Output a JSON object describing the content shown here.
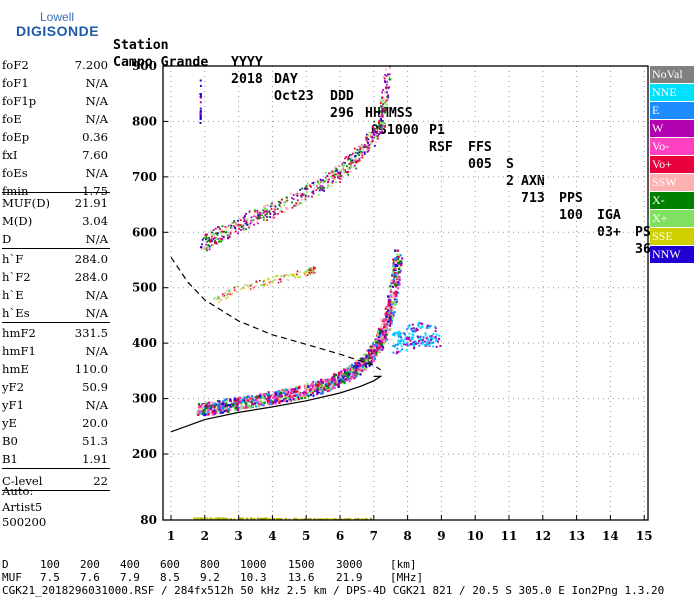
{
  "logo": {
    "top": "Lowell",
    "brand": "DIGISONDE"
  },
  "header": {
    "labels": [
      "Station",
      "YYYY",
      "DAY",
      "DDD",
      "HHMMSS",
      "P1",
      "FFS",
      "S",
      "AXN",
      "PPS",
      "IGA",
      "PS"
    ],
    "values": [
      "Campo Grande",
      "2018",
      "Oct23",
      "296",
      "031000",
      "RSF",
      "005",
      "2",
      "713",
      "100",
      "03+",
      "36"
    ]
  },
  "params": [
    {
      "k": "foF2",
      "v": "7.200"
    },
    {
      "k": "foF1",
      "v": "N/A"
    },
    {
      "k": "foF1p",
      "v": "N/A"
    },
    {
      "k": "foE",
      "v": "N/A"
    },
    {
      "k": "foEp",
      "v": "0.36"
    },
    {
      "k": "fxI",
      "v": "7.60"
    },
    {
      "k": "foEs",
      "v": "N/A"
    },
    {
      "k": "fmin",
      "v": "1.75"
    },
    {
      "k": "MUF(D)",
      "v": "21.91"
    },
    {
      "k": "M(D)",
      "v": "3.04"
    },
    {
      "k": "D",
      "v": "N/A"
    },
    {
      "k": "h`F",
      "v": "284.0"
    },
    {
      "k": "h`F2",
      "v": "284.0"
    },
    {
      "k": "h`E",
      "v": "N/A"
    },
    {
      "k": "h`Es",
      "v": "N/A"
    },
    {
      "k": "hmF2",
      "v": "331.5"
    },
    {
      "k": "hmF1",
      "v": "N/A"
    },
    {
      "k": "hmE",
      "v": "110.0"
    },
    {
      "k": "yF2",
      "v": "50.9"
    },
    {
      "k": "yF1",
      "v": "N/A"
    },
    {
      "k": "yE",
      "v": "20.0"
    },
    {
      "k": "B0",
      "v": "51.3"
    },
    {
      "k": "B1",
      "v": "1.91"
    },
    {
      "k": "C-level",
      "v": "22"
    }
  ],
  "auto": [
    "Auto:",
    "Artist5",
    "500200"
  ],
  "chart_data": {
    "type": "scatter",
    "x_ticks": [
      "1",
      "2",
      "3",
      "4",
      "5",
      "6",
      "7",
      "8",
      "9",
      "10",
      "11",
      "12",
      "13",
      "14",
      "15"
    ],
    "y_ticks": [
      "80",
      "200",
      "300",
      "400",
      "500",
      "600",
      "700",
      "800",
      "900"
    ],
    "xlim": [
      1,
      15
    ],
    "y_axis_scale": "virtual height (km), nonlinear: 80 at bottom, 200–900 linear",
    "legend": [
      {
        "name": "NoVal",
        "color": "#808080"
      },
      {
        "name": "NNE",
        "color": "#00e0ff"
      },
      {
        "name": "E",
        "color": "#1e8cff"
      },
      {
        "name": "W",
        "color": "#b000b0"
      },
      {
        "name": "Vo-",
        "color": "#ff40c0"
      },
      {
        "name": "Vo+",
        "color": "#e8003c"
      },
      {
        "name": "SSW",
        "color": "#ffb0b0"
      },
      {
        "name": "X-",
        "color": "#008000"
      },
      {
        "name": "X+",
        "color": "#80e060"
      },
      {
        "name": "SSE",
        "color": "#d0d000"
      },
      {
        "name": "NNW",
        "color": "#2000d0"
      }
    ],
    "o_trace": [
      [
        1.8,
        280
      ],
      [
        2.5,
        288
      ],
      [
        3.5,
        298
      ],
      [
        4.5,
        308
      ],
      [
        5.5,
        325
      ],
      [
        6.2,
        345
      ],
      [
        6.8,
        370
      ],
      [
        7.2,
        410
      ],
      [
        7.5,
        470
      ],
      [
        7.7,
        560
      ]
    ],
    "x_trace": [
      [
        1.9,
        580
      ],
      [
        2.5,
        600
      ],
      [
        3.5,
        630
      ],
      [
        4.5,
        655
      ],
      [
        5.5,
        690
      ],
      [
        6.2,
        720
      ],
      [
        6.8,
        760
      ],
      [
        7.2,
        800
      ],
      [
        7.4,
        890
      ]
    ],
    "es_trace": [
      [
        2.3,
        480
      ],
      [
        3,
        500
      ],
      [
        4,
        515
      ],
      [
        5,
        530
      ],
      [
        5.2,
        535
      ]
    ],
    "spread_trace": [
      [
        7.6,
        400
      ],
      [
        8,
        410
      ],
      [
        8.4,
        420
      ],
      [
        8.9,
        410
      ]
    ],
    "low_trace": [
      [
        1.6,
        84
      ],
      [
        3,
        84
      ],
      [
        5,
        83
      ],
      [
        6.9,
        83
      ]
    ],
    "spike_trace": [
      [
        1.85,
        790
      ],
      [
        1.85,
        880
      ]
    ],
    "profile_curve": [
      [
        1,
        240
      ],
      [
        2,
        262
      ],
      [
        3,
        275
      ],
      [
        4,
        285
      ],
      [
        5,
        296
      ],
      [
        6,
        310
      ],
      [
        6.6,
        322
      ],
      [
        7,
        332
      ],
      [
        7.2,
        340
      ],
      [
        7.0,
        340
      ]
    ],
    "profile_dashed": [
      [
        1,
        555
      ],
      [
        1.5,
        510
      ],
      [
        2,
        478
      ],
      [
        3,
        440
      ],
      [
        4,
        415
      ],
      [
        5,
        398
      ],
      [
        6,
        380
      ],
      [
        7,
        360
      ],
      [
        7.2,
        352
      ]
    ]
  },
  "footer": {
    "row1": [
      "D",
      "100",
      "200",
      "400",
      "600",
      "800",
      "1000",
      "1500",
      "3000",
      "[km]"
    ],
    "row2": [
      "MUF",
      "7.5",
      "7.6",
      "7.9",
      "8.5",
      "9.2",
      "10.3",
      "13.6",
      "21.9",
      "[MHz]"
    ],
    "row3": "CGK21_2018296031000.RSF / 284fx512h 50 kHz 2.5 km / DPS-4D CGK21 821 / 20.5 S 305.0 E Ion2Png 1.3.20"
  }
}
